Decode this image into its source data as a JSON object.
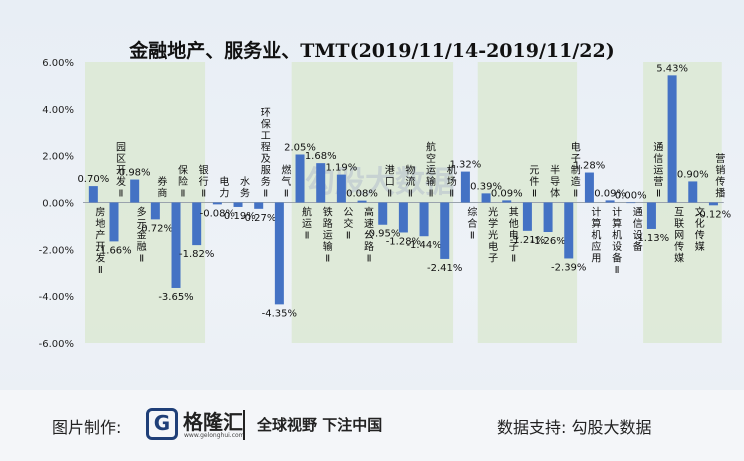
{
  "chart_data": {
    "type": "bar",
    "title": "金融地产、服务业、TMT(2019/11/14-2019/11/22)",
    "categories": [
      "房地产开发Ⅱ",
      "园区开发Ⅱ",
      "多元金融Ⅱ",
      "券商",
      "保险Ⅱ",
      "银行Ⅱ",
      "电力",
      "水务",
      "环保工程及服务Ⅱ",
      "燃气Ⅱ",
      "航运Ⅱ",
      "铁路运输Ⅱ",
      "公交Ⅱ",
      "高速公路Ⅱ",
      "港口Ⅱ",
      "物流Ⅱ",
      "航空运输Ⅱ",
      "机场Ⅱ",
      "综合Ⅱ",
      "光学光电子",
      "其他电子Ⅱ",
      "元件Ⅱ",
      "半导体",
      "电子制造Ⅱ",
      "计算机应用",
      "计算机设备Ⅱ",
      "通信设备",
      "通信运营Ⅱ",
      "互联网传媒",
      "文化传媒",
      "营销传播"
    ],
    "values": [
      0.7,
      -1.66,
      0.98,
      -0.72,
      -3.65,
      -1.82,
      -0.08,
      -0.19,
      -0.27,
      -4.35,
      2.05,
      1.68,
      1.19,
      0.08,
      -0.95,
      -1.28,
      -1.44,
      -2.41,
      1.32,
      0.39,
      0.09,
      -1.21,
      -1.26,
      -2.39,
      1.28,
      0.09,
      0.0,
      -1.13,
      5.43,
      0.9,
      -0.12
    ],
    "value_labels": [
      "0.70%",
      "-1.66%",
      "0.98%",
      "-0.72%",
      "-3.65%",
      "-1.82%",
      "-0.08%",
      "-0.19%",
      "-0.27%",
      "-4.35%",
      "2.05%",
      "1.68%",
      "1.19%",
      "0.08%",
      "-0.95%",
      "-1.28%",
      "-1.44%",
      "-2.41%",
      "1.32%",
      "0.39%",
      "0.09%",
      "-1.21%",
      "-1.26%",
      "-2.39%",
      "1.28%",
      "0.09%",
      "0.00%",
      "-1.13%",
      "5.43%",
      "0.90%",
      "-0.12%"
    ],
    "ylim": [
      -6,
      6
    ],
    "yticks": [
      -6,
      -4,
      -2,
      0,
      2,
      4,
      6
    ],
    "ytick_labels": [
      "-6.00%",
      "-4.00%",
      "-2.00%",
      "0.00%",
      "2.00%",
      "4.00%",
      "6.00%"
    ],
    "grid": false,
    "bar_color": "#4472c4",
    "shaded_groups": [
      [
        0,
        5
      ],
      [
        10,
        17
      ],
      [
        19,
        23
      ],
      [
        27,
        30
      ]
    ],
    "shade_color": "#dce9d3"
  },
  "footer": {
    "made_by_label": "图片制作:",
    "logo_mark": "G",
    "logo_name": "格隆汇",
    "logo_url": "www.gelonghui.com",
    "slogan": "全球视野 下注中国",
    "data_support": "数据支持:  勾股大数据"
  },
  "watermark": "勾股大数据"
}
